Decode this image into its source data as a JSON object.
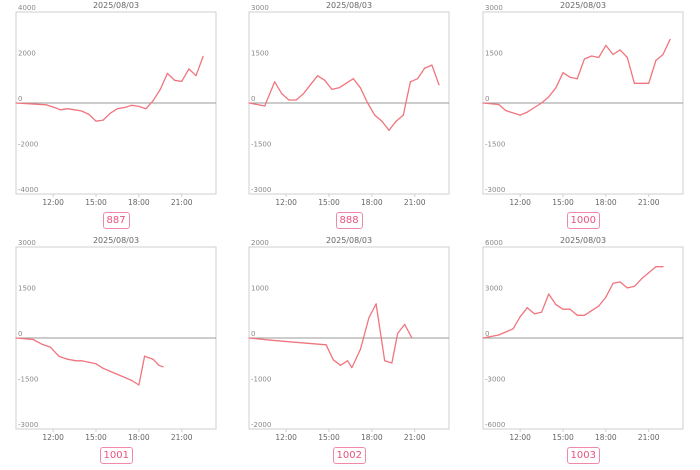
{
  "colors": {
    "line": "#f0757e",
    "zero_line": "#999999",
    "frame": "#cfcfcf",
    "badge_border": "#f08aa8",
    "badge_text": "#e8537f",
    "text": "#888888"
  },
  "chart_data": [
    {
      "type": "line",
      "title": "2025/08/03",
      "badge": "887",
      "ylim": [
        -4000,
        4000
      ],
      "yticks": [
        4000,
        2000,
        0,
        -2000,
        -4000
      ],
      "xlim": [
        9.4,
        23.4
      ],
      "xticks": [
        "12:00",
        "15:00",
        "18:00",
        "21:00"
      ],
      "x": [
        9.4,
        11.5,
        12.1,
        12.5,
        13.0,
        13.5,
        14.0,
        14.5,
        15.0,
        15.5,
        16.0,
        16.5,
        17.0,
        17.5,
        18.0,
        18.5,
        19.0,
        19.5,
        20.0,
        20.5,
        21.0,
        21.5,
        22.0,
        22.5
      ],
      "y": [
        0,
        -80,
        -200,
        -300,
        -250,
        -300,
        -350,
        -500,
        -800,
        -750,
        -450,
        -250,
        -200,
        -100,
        -150,
        -250,
        100,
        600,
        1300,
        1000,
        950,
        1500,
        1200,
        2050
      ]
    },
    {
      "type": "line",
      "title": "2025/08/03",
      "badge": "888",
      "ylim": [
        -3000,
        3000
      ],
      "yticks": [
        3000,
        1500,
        0,
        -1500,
        -3000
      ],
      "xlim": [
        9.4,
        23.4
      ],
      "xticks": [
        "12:00",
        "15:00",
        "18:00",
        "21:00"
      ],
      "x": [
        9.4,
        10.5,
        11.2,
        11.7,
        12.2,
        12.7,
        13.2,
        13.7,
        14.2,
        14.7,
        15.2,
        15.7,
        16.2,
        16.7,
        17.2,
        17.7,
        18.2,
        18.7,
        19.2,
        19.7,
        20.2,
        20.7,
        21.2,
        21.7,
        22.2,
        22.7
      ],
      "y": [
        0,
        -100,
        700,
        300,
        100,
        100,
        300,
        600,
        900,
        750,
        450,
        500,
        650,
        800,
        500,
        0,
        -400,
        -600,
        -900,
        -600,
        -400,
        700,
        800,
        1150,
        1250,
        600
      ]
    },
    {
      "type": "line",
      "title": "2025/08/03",
      "badge": "1000",
      "ylim": [
        -3000,
        3000
      ],
      "yticks": [
        3000,
        1500,
        0,
        -1500,
        -3000
      ],
      "xlim": [
        9.4,
        23.4
      ],
      "xticks": [
        "12:00",
        "15:00",
        "18:00",
        "21:00"
      ],
      "x": [
        9.4,
        10.5,
        11.0,
        12.0,
        12.5,
        13.0,
        13.5,
        14.0,
        14.5,
        15.0,
        15.5,
        16.0,
        16.5,
        17.0,
        17.5,
        18.0,
        18.5,
        19.0,
        19.5,
        20.0,
        21.0,
        21.5,
        22.0,
        22.5
      ],
      "y": [
        0,
        -50,
        -250,
        -400,
        -300,
        -150,
        0,
        200,
        500,
        1000,
        850,
        800,
        1450,
        1550,
        1500,
        1900,
        1600,
        1750,
        1500,
        650,
        650,
        1400,
        1600,
        2100
      ]
    },
    {
      "type": "line",
      "title": "2025/08/03",
      "badge": "1001",
      "ylim": [
        -3000,
        3000
      ],
      "yticks": [
        3000,
        1500,
        0,
        -1500,
        -3000
      ],
      "xlim": [
        9.4,
        23.4
      ],
      "xticks": [
        "12:00",
        "15:00",
        "18:00",
        "21:00"
      ],
      "x": [
        9.4,
        10.6,
        11.2,
        11.8,
        12.4,
        13.0,
        13.6,
        14.0,
        14.5,
        15.0,
        15.5,
        16.0,
        16.5,
        17.0,
        17.5,
        18.0,
        18.4,
        19.0,
        19.4,
        19.7
      ],
      "y": [
        0,
        -50,
        -200,
        -300,
        -600,
        -700,
        -750,
        -750,
        -800,
        -850,
        -1000,
        -1100,
        -1200,
        -1300,
        -1400,
        -1550,
        -600,
        -700,
        -900,
        -950
      ]
    },
    {
      "type": "line",
      "title": "2025/08/03",
      "badge": "1002",
      "ylim": [
        -2000,
        2000
      ],
      "yticks": [
        2000,
        1000,
        0,
        -1000,
        -2000
      ],
      "xlim": [
        9.4,
        23.4
      ],
      "xticks": [
        "12:00",
        "15:00",
        "18:00",
        "21:00"
      ],
      "x": [
        9.4,
        11.0,
        14.8,
        15.3,
        15.8,
        16.3,
        16.6,
        17.2,
        17.8,
        18.3,
        18.9,
        19.4,
        19.8,
        20.3,
        20.8
      ],
      "y": [
        0,
        -50,
        -150,
        -480,
        -600,
        -500,
        -650,
        -250,
        450,
        750,
        -500,
        -550,
        100,
        300,
        0
      ]
    },
    {
      "type": "line",
      "title": "2025/08/03",
      "badge": "1003",
      "ylim": [
        -6000,
        6000
      ],
      "yticks": [
        6000,
        3000,
        0,
        -3000,
        -6000
      ],
      "xlim": [
        9.4,
        23.4
      ],
      "xticks": [
        "12:00",
        "15:00",
        "18:00",
        "21:00"
      ],
      "x": [
        9.4,
        10.5,
        11.5,
        12.0,
        12.5,
        13.0,
        13.5,
        14.0,
        14.5,
        15.0,
        15.5,
        16.0,
        16.5,
        17.0,
        17.5,
        18.0,
        18.5,
        19.0,
        19.5,
        20.0,
        20.5,
        21.0,
        21.5,
        22.0
      ],
      "y": [
        0,
        200,
        600,
        1400,
        2000,
        1600,
        1700,
        2900,
        2200,
        1900,
        1900,
        1500,
        1500,
        1800,
        2100,
        2700,
        3600,
        3700,
        3300,
        3400,
        3900,
        4300,
        4700,
        4700
      ]
    }
  ]
}
